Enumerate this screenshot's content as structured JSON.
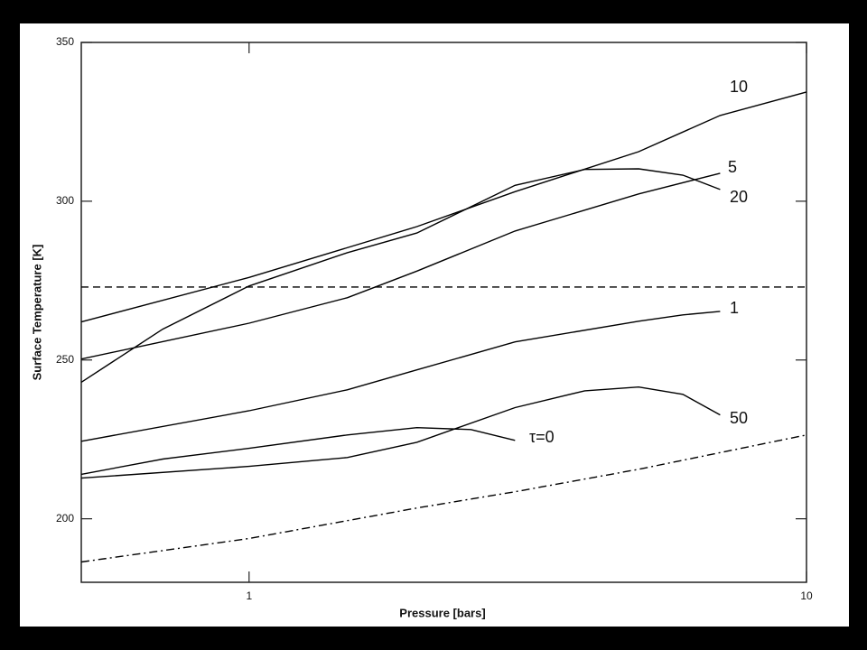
{
  "chart_data": {
    "type": "line",
    "xlabel": "Pressure [bars]",
    "ylabel": "Surface Temperature [K]",
    "xscale": "log",
    "xlim": [
      0.5,
      10
    ],
    "xticks": [
      1,
      10
    ],
    "ylim": [
      180,
      350
    ],
    "yticks": [
      200,
      250,
      300,
      350
    ],
    "series": [
      {
        "name": "10",
        "color": "#000000",
        "style": "solid",
        "x": [
          0.5,
          1,
          2,
          3,
          5,
          7,
          10
        ],
        "values": [
          262,
          276,
          292,
          303,
          315.6,
          327,
          334.4
        ]
      },
      {
        "name": "5",
        "color": "#000000",
        "style": "solid",
        "x": [
          0.5,
          1,
          1.5,
          2,
          3,
          5,
          7
        ],
        "values": [
          250.3,
          261.6,
          269.6,
          278,
          290.6,
          302.3,
          308.8
        ]
      },
      {
        "name": "20",
        "color": "#000000",
        "style": "solid",
        "x": [
          0.5,
          0.7,
          1,
          1.5,
          2,
          3,
          4,
          5,
          6,
          7
        ],
        "values": [
          243,
          259.7,
          273.3,
          283.8,
          290,
          305,
          310,
          310.2,
          308.2,
          303.7
        ]
      },
      {
        "name": "1",
        "color": "#000000",
        "style": "solid",
        "x": [
          0.5,
          1,
          1.5,
          2,
          3,
          5,
          6,
          7
        ],
        "values": [
          224.4,
          234,
          240.6,
          246.9,
          255.7,
          262.2,
          264.2,
          265.3
        ]
      },
      {
        "name": "50",
        "color": "#000000",
        "style": "solid",
        "x": [
          0.5,
          1,
          1.5,
          2,
          3,
          4,
          5,
          6,
          7
        ],
        "values": [
          212.8,
          216.5,
          219.3,
          224.1,
          235,
          240.3,
          241.5,
          239.2,
          232.7
        ]
      },
      {
        "name": "τ=0",
        "color": "#000000",
        "style": "solid",
        "x": [
          0.5,
          0.7,
          1,
          1.5,
          2,
          2.5,
          3
        ],
        "values": [
          214,
          218.8,
          222.2,
          226.4,
          228.7,
          228.1,
          224.7
        ]
      },
      {
        "color": "#000000",
        "style": "dashed",
        "x": [
          0.5,
          10
        ],
        "values": [
          273,
          273
        ]
      },
      {
        "color": "#000000",
        "style": "dashdot",
        "x": [
          0.5,
          1,
          2,
          3,
          5,
          10
        ],
        "values": [
          186.4,
          193.8,
          203.4,
          208.5,
          215.6,
          226.4
        ]
      }
    ]
  }
}
